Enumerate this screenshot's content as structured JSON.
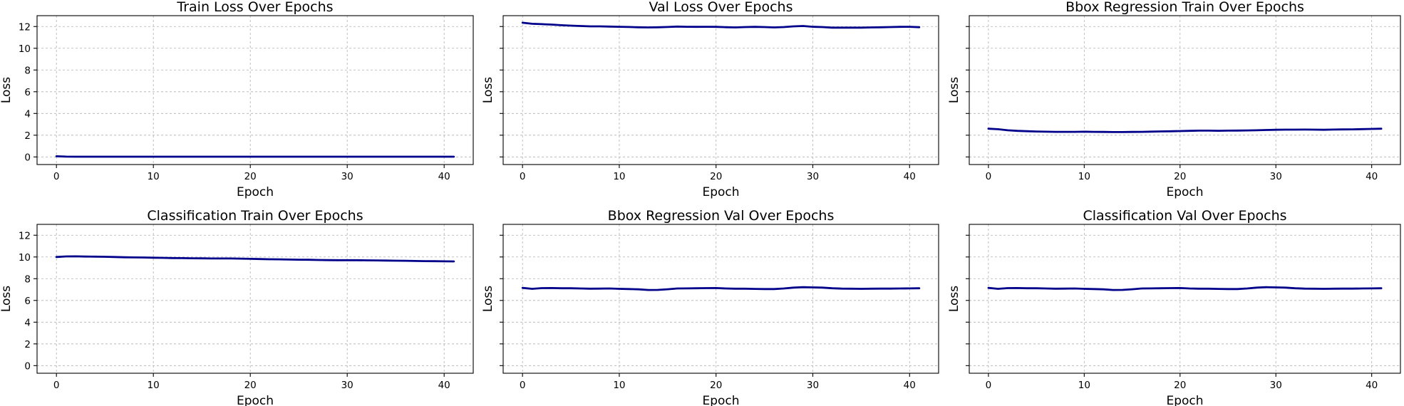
{
  "figure": {
    "background": "#ffffff",
    "line_color": "#00008b"
  },
  "chart_data": [
    {
      "type": "line",
      "title": "Train Loss Over Epochs",
      "xlabel": "Epoch",
      "ylabel": "Loss",
      "xlim": [
        -2,
        43
      ],
      "ylim": [
        -0.7,
        13
      ],
      "xticks": [
        0,
        10,
        20,
        30,
        40
      ],
      "yticks": [
        0,
        2,
        4,
        6,
        8,
        10,
        12
      ],
      "show_yticklabels": true,
      "grid": true,
      "series": [
        {
          "color": "#00008b",
          "x": [
            0,
            1,
            2,
            3,
            4,
            5,
            6,
            7,
            8,
            9,
            10,
            11,
            12,
            13,
            14,
            15,
            16,
            17,
            18,
            19,
            20,
            21,
            22,
            23,
            24,
            25,
            26,
            27,
            28,
            29,
            30,
            31,
            32,
            33,
            34,
            35,
            36,
            37,
            38,
            39,
            40,
            41
          ],
          "y": [
            0.06,
            0.03,
            0.02,
            0.02,
            0.02,
            0.02,
            0.02,
            0.02,
            0.02,
            0.02,
            0.02,
            0.02,
            0.02,
            0.02,
            0.02,
            0.02,
            0.02,
            0.02,
            0.02,
            0.02,
            0.02,
            0.02,
            0.02,
            0.02,
            0.02,
            0.02,
            0.02,
            0.02,
            0.02,
            0.02,
            0.02,
            0.02,
            0.02,
            0.02,
            0.02,
            0.02,
            0.02,
            0.02,
            0.02,
            0.02,
            0.02,
            0.02
          ]
        }
      ]
    },
    {
      "type": "line",
      "title": "Val Loss Over Epochs",
      "xlabel": "Epoch",
      "ylabel": "Loss",
      "xlim": [
        -2,
        43
      ],
      "ylim": [
        -0.7,
        13
      ],
      "xticks": [
        0,
        10,
        20,
        30,
        40
      ],
      "yticks": [
        0,
        2,
        4,
        6,
        8,
        10,
        12
      ],
      "show_yticklabels": false,
      "grid": true,
      "series": [
        {
          "color": "#00008b",
          "x": [
            0,
            1,
            2,
            3,
            4,
            5,
            6,
            7,
            8,
            9,
            10,
            11,
            12,
            13,
            14,
            15,
            16,
            17,
            18,
            19,
            20,
            21,
            22,
            23,
            24,
            25,
            26,
            27,
            28,
            29,
            30,
            31,
            32,
            33,
            34,
            35,
            36,
            37,
            38,
            39,
            40,
            41
          ],
          "y": [
            12.35,
            12.25,
            12.22,
            12.18,
            12.12,
            12.08,
            12.05,
            12.02,
            12.02,
            12.0,
            11.98,
            11.96,
            11.93,
            11.92,
            11.93,
            11.96,
            12.0,
            11.98,
            11.97,
            11.98,
            11.97,
            11.94,
            11.92,
            11.95,
            11.97,
            11.95,
            11.92,
            11.95,
            12.02,
            12.05,
            11.98,
            11.95,
            11.9,
            11.9,
            11.9,
            11.9,
            11.92,
            11.93,
            11.95,
            11.97,
            11.98,
            11.94
          ]
        }
      ]
    },
    {
      "type": "line",
      "title": "Bbox Regression Train Over Epochs",
      "xlabel": "Epoch",
      "ylabel": "Loss",
      "xlim": [
        -2,
        43
      ],
      "ylim": [
        -0.7,
        13
      ],
      "xticks": [
        0,
        10,
        20,
        30,
        40
      ],
      "yticks": [
        0,
        2,
        4,
        6,
        8,
        10,
        12
      ],
      "show_yticklabels": false,
      "grid": true,
      "series": [
        {
          "color": "#00008b",
          "x": [
            0,
            1,
            2,
            3,
            4,
            5,
            6,
            7,
            8,
            9,
            10,
            11,
            12,
            13,
            14,
            15,
            16,
            17,
            18,
            19,
            20,
            21,
            22,
            23,
            24,
            25,
            26,
            27,
            28,
            29,
            30,
            31,
            32,
            33,
            34,
            35,
            36,
            37,
            38,
            39,
            40,
            41
          ],
          "y": [
            2.6,
            2.55,
            2.45,
            2.4,
            2.37,
            2.34,
            2.32,
            2.31,
            2.31,
            2.31,
            2.32,
            2.31,
            2.3,
            2.29,
            2.29,
            2.3,
            2.31,
            2.33,
            2.35,
            2.36,
            2.38,
            2.4,
            2.42,
            2.42,
            2.41,
            2.42,
            2.43,
            2.44,
            2.45,
            2.48,
            2.5,
            2.51,
            2.51,
            2.52,
            2.51,
            2.5,
            2.52,
            2.53,
            2.54,
            2.56,
            2.58,
            2.6
          ]
        }
      ]
    },
    {
      "type": "line",
      "title": "Classification Train Over Epochs",
      "xlabel": "Epoch",
      "ylabel": "Loss",
      "xlim": [
        -2,
        43
      ],
      "ylim": [
        -0.7,
        13
      ],
      "xticks": [
        0,
        10,
        20,
        30,
        40
      ],
      "yticks": [
        0,
        2,
        4,
        6,
        8,
        10,
        12
      ],
      "show_yticklabels": true,
      "grid": true,
      "series": [
        {
          "color": "#00008b",
          "x": [
            0,
            1,
            2,
            3,
            4,
            5,
            6,
            7,
            8,
            9,
            10,
            11,
            12,
            13,
            14,
            15,
            16,
            17,
            18,
            19,
            20,
            21,
            22,
            23,
            24,
            25,
            26,
            27,
            28,
            29,
            30,
            31,
            32,
            33,
            34,
            35,
            36,
            37,
            38,
            39,
            40,
            41
          ],
          "y": [
            10.0,
            10.05,
            10.06,
            10.04,
            10.03,
            10.02,
            10.0,
            9.97,
            9.96,
            9.95,
            9.93,
            9.92,
            9.9,
            9.89,
            9.88,
            9.87,
            9.86,
            9.86,
            9.86,
            9.85,
            9.83,
            9.81,
            9.79,
            9.78,
            9.76,
            9.75,
            9.74,
            9.72,
            9.71,
            9.7,
            9.7,
            9.7,
            9.69,
            9.68,
            9.67,
            9.66,
            9.65,
            9.63,
            9.62,
            9.61,
            9.6,
            9.59
          ]
        }
      ]
    },
    {
      "type": "line",
      "title": "Bbox Regression Val Over Epochs",
      "xlabel": "Epoch",
      "ylabel": "Loss",
      "xlim": [
        -2,
        43
      ],
      "ylim": [
        -0.7,
        13
      ],
      "xticks": [
        0,
        10,
        20,
        30,
        40
      ],
      "yticks": [
        0,
        2,
        4,
        6,
        8,
        10,
        12
      ],
      "show_yticklabels": false,
      "grid": true,
      "series": [
        {
          "color": "#00008b",
          "x": [
            0,
            1,
            2,
            3,
            4,
            5,
            6,
            7,
            8,
            9,
            10,
            11,
            12,
            13,
            14,
            15,
            16,
            17,
            18,
            19,
            20,
            21,
            22,
            23,
            24,
            25,
            26,
            27,
            28,
            29,
            30,
            31,
            32,
            33,
            34,
            35,
            36,
            37,
            38,
            39,
            40,
            41
          ],
          "y": [
            7.15,
            7.07,
            7.13,
            7.14,
            7.12,
            7.12,
            7.1,
            7.08,
            7.09,
            7.1,
            7.07,
            7.05,
            7.02,
            6.96,
            6.97,
            7.03,
            7.1,
            7.11,
            7.12,
            7.13,
            7.14,
            7.1,
            7.08,
            7.08,
            7.06,
            7.05,
            7.05,
            7.1,
            7.18,
            7.22,
            7.2,
            7.18,
            7.12,
            7.09,
            7.08,
            7.07,
            7.08,
            7.09,
            7.09,
            7.1,
            7.11,
            7.12
          ]
        }
      ]
    },
    {
      "type": "line",
      "title": "Classification Val Over Epochs",
      "xlabel": "Epoch",
      "ylabel": "Loss",
      "xlim": [
        -2,
        43
      ],
      "ylim": [
        -0.7,
        13
      ],
      "xticks": [
        0,
        10,
        20,
        30,
        40
      ],
      "yticks": [
        0,
        2,
        4,
        6,
        8,
        10,
        12
      ],
      "show_yticklabels": false,
      "grid": true,
      "series": [
        {
          "color": "#00008b",
          "x": [
            0,
            1,
            2,
            3,
            4,
            5,
            6,
            7,
            8,
            9,
            10,
            11,
            12,
            13,
            14,
            15,
            16,
            17,
            18,
            19,
            20,
            21,
            22,
            23,
            24,
            25,
            26,
            27,
            28,
            29,
            30,
            31,
            32,
            33,
            34,
            35,
            36,
            37,
            38,
            39,
            40,
            41
          ],
          "y": [
            7.15,
            7.07,
            7.13,
            7.14,
            7.12,
            7.12,
            7.1,
            7.08,
            7.09,
            7.1,
            7.07,
            7.05,
            7.02,
            6.96,
            6.97,
            7.03,
            7.1,
            7.11,
            7.12,
            7.13,
            7.14,
            7.1,
            7.08,
            7.08,
            7.06,
            7.05,
            7.05,
            7.1,
            7.18,
            7.22,
            7.2,
            7.18,
            7.12,
            7.09,
            7.08,
            7.07,
            7.08,
            7.09,
            7.09,
            7.1,
            7.11,
            7.12
          ]
        }
      ]
    }
  ]
}
